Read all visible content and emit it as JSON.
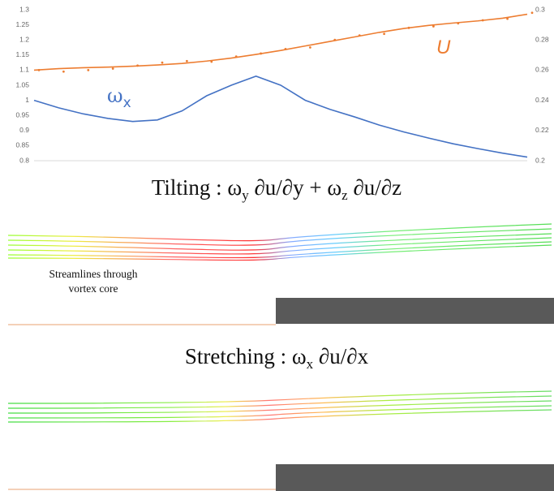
{
  "chart_data": {
    "type": "line",
    "categories": [
      null,
      null,
      null,
      null,
      null,
      null,
      null,
      null,
      null,
      null,
      null,
      null,
      null,
      null,
      null,
      null,
      null,
      null,
      null,
      null,
      null
    ],
    "ylim": [
      0.8,
      1.3
    ],
    "yticks": [
      0.8,
      0.85,
      0.9,
      0.95,
      1,
      1.05,
      1.1,
      1.15,
      1.2,
      1.25,
      1.3
    ],
    "y2lim": [
      0.2,
      0.3
    ],
    "y2ticks": [
      0.2,
      0.22,
      0.24,
      0.26,
      0.28,
      0.3
    ],
    "grid": false,
    "series": [
      {
        "name": "U",
        "color": "#ed7d31",
        "values": [
          1.1,
          1.105,
          1.108,
          1.11,
          1.113,
          1.117,
          1.122,
          1.13,
          1.14,
          1.152,
          1.165,
          1.18,
          1.195,
          1.21,
          1.225,
          1.238,
          1.248,
          1.256,
          1.263,
          1.272,
          1.285
        ]
      },
      {
        "color": "#ed7d31",
        "marker": "dots",
        "values": [
          1.1,
          1.095,
          1.1,
          1.105,
          1.115,
          1.125,
          1.13,
          1.128,
          1.145,
          1.155,
          1.17,
          1.175,
          1.2,
          1.215,
          1.22,
          1.24,
          1.245,
          1.255,
          1.265,
          1.27,
          1.29
        ]
      },
      {
        "name": "ω",
        "subscript": "x",
        "color": "#4472c4",
        "axis": "y2",
        "values": [
          0.24,
          0.235,
          0.231,
          0.228,
          0.226,
          0.227,
          0.233,
          0.243,
          0.25,
          0.256,
          0.25,
          0.24,
          0.234,
          0.229,
          0.2236,
          0.219,
          0.215,
          0.2112,
          0.208,
          0.205,
          0.2024
        ]
      }
    ]
  },
  "formulas": [
    [
      "Tilting : ω",
      "y",
      " ∂u/∂y + ω",
      "z",
      " ∂u/∂z"
    ],
    [
      "Stretching : ω",
      "x",
      " ∂u/∂x"
    ]
  ],
  "notes": [
    "Streamlines through",
    "vortex core"
  ]
}
